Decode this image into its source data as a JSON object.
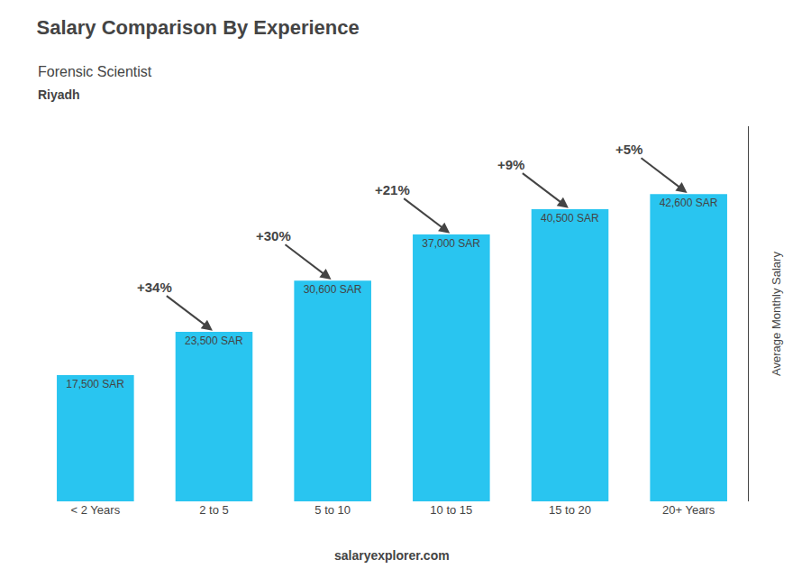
{
  "chart_data": {
    "type": "bar",
    "title": "Salary Comparison By Experience",
    "subtitle": [
      "Forensic Scientist",
      "Riyadh"
    ],
    "ylabel": "Average Monthly Salary",
    "categories": [
      "< 2 Years",
      "2 to 5",
      "5 to 10",
      "10 to 15",
      "15 to 20",
      "20+ Years"
    ],
    "values": [
      17500,
      23500,
      30600,
      37000,
      40500,
      42600
    ],
    "value_labels": [
      "17,500 SAR",
      "23,500 SAR",
      "30,600 SAR",
      "37,000 SAR",
      "40,500 SAR",
      "42,600 SAR"
    ],
    "data_labels": true,
    "color": "#29c5f0",
    "ylim": [
      0,
      52000
    ],
    "grid": false,
    "tick_labels": "x",
    "annotations": [
      {
        "text": "+34%",
        "from": "< 2 Years",
        "to": "2 to 5"
      },
      {
        "text": "+30%",
        "from": "2 to 5",
        "to": "5 to 10"
      },
      {
        "text": "+21%",
        "from": "5 to 10",
        "to": "10 to 15"
      },
      {
        "text": "+9%",
        "from": "10 to 15",
        "to": "15 to 20"
      },
      {
        "text": "+5%",
        "from": "15 to 20",
        "to": "20+ Years"
      },
      {
        "text": "salaryexplorer.com"
      }
    ]
  }
}
